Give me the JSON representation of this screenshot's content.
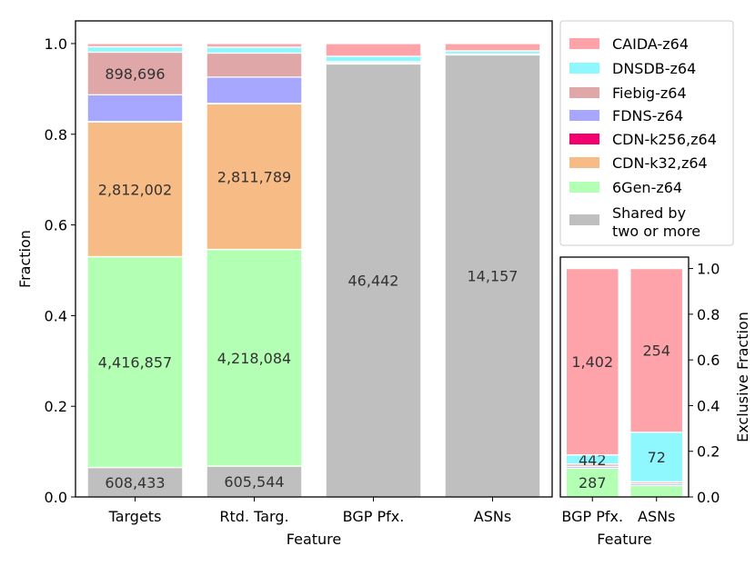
{
  "chart_data": [
    {
      "type": "stacked-bar",
      "id": "main",
      "title": "",
      "xlabel": "Feature",
      "ylabel": "Fraction",
      "ylim": [
        0,
        1.05
      ],
      "yticks": [
        0.0,
        0.2,
        0.4,
        0.6,
        0.8,
        1.0
      ],
      "ytick_labels": [
        "0.0",
        "0.2",
        "0.4",
        "0.6",
        "0.8",
        "1.0"
      ],
      "categories": [
        "Targets",
        "Rtd. Targ.",
        "BGP Pfx.",
        "ASNs"
      ],
      "series": [
        {
          "name": "Shared by two or more",
          "color": "#bfbfbf",
          "values": [
            0.065,
            0.068,
            0.955,
            0.975
          ],
          "labels": [
            "608,433",
            "605,544",
            "46,442",
            "14,157"
          ]
        },
        {
          "name": "6Gen-z64",
          "color": "#b3ffb3",
          "values": [
            0.465,
            0.478,
            0.0,
            0.0
          ],
          "labels": [
            "4,416,857",
            "4,218,084",
            "",
            ""
          ]
        },
        {
          "name": "CDN-k32,z64",
          "color": "#f7bb85",
          "values": [
            0.297,
            0.321,
            0.0,
            0.0
          ],
          "labels": [
            "2,812,002",
            "2,811,789",
            "",
            ""
          ]
        },
        {
          "name": "CDN-k256,z64",
          "color": "#f2006e",
          "values": [
            0.001,
            0.001,
            0.0,
            0.0
          ],
          "labels": [
            "",
            "",
            "",
            ""
          ]
        },
        {
          "name": "FDNS-z64",
          "color": "#a7a7ff",
          "values": [
            0.059,
            0.058,
            0.002,
            0.001
          ],
          "labels": [
            "",
            "",
            "",
            ""
          ]
        },
        {
          "name": "Fiebig-z64",
          "color": "#dfa7a7",
          "values": [
            0.094,
            0.053,
            0.003,
            0.001
          ],
          "labels": [
            "898,696",
            "",
            "",
            ""
          ]
        },
        {
          "name": "DNSDB-z64",
          "color": "#8ef8fe",
          "values": [
            0.012,
            0.013,
            0.012,
            0.007
          ],
          "labels": [
            "",
            "",
            "",
            ""
          ]
        },
        {
          "name": "CAIDA-z64",
          "color": "#fea3aa",
          "values": [
            0.007,
            0.008,
            0.028,
            0.016
          ],
          "labels": [
            "",
            "",
            "",
            ""
          ]
        }
      ]
    },
    {
      "type": "stacked-bar",
      "id": "inset",
      "title": "",
      "xlabel": "Feature",
      "ylabel": "Exclusive Fraction",
      "ylim": [
        0,
        1.05
      ],
      "yticks": [
        0.0,
        0.2,
        0.4,
        0.6,
        0.8,
        1.0
      ],
      "ytick_labels": [
        "0.0",
        "0.2",
        "0.4",
        "0.6",
        "0.8",
        "1.0"
      ],
      "categories": [
        "BGP Pfx.",
        "ASNs"
      ],
      "series": [
        {
          "name": "6Gen-z64",
          "color": "#b3ffb3",
          "values": [
            0.126,
            0.05
          ],
          "labels": [
            "287",
            ""
          ]
        },
        {
          "name": "FDNS-z64",
          "color": "#a7a7ff",
          "values": [
            0.008,
            0.008
          ],
          "labels": [
            "",
            ""
          ]
        },
        {
          "name": "Fiebig-z64",
          "color": "#dfa7a7",
          "values": [
            0.01,
            0.008
          ],
          "labels": [
            "",
            ""
          ]
        },
        {
          "name": "DNSDB-z64",
          "color": "#8ef8fe",
          "values": [
            0.04,
            0.217
          ],
          "labels": [
            "442",
            "72"
          ]
        },
        {
          "name": "CAIDA-z64",
          "color": "#fea3aa",
          "values": [
            0.816,
            0.717
          ],
          "labels": [
            "1,402",
            "254"
          ]
        }
      ]
    }
  ],
  "legend": {
    "placement": "top-right",
    "entries": [
      {
        "name": "CAIDA-z64",
        "color": "#fea3aa"
      },
      {
        "name": "DNSDB-z64",
        "color": "#8ef8fe"
      },
      {
        "name": "Fiebig-z64",
        "color": "#dfa7a7"
      },
      {
        "name": "FDNS-z64",
        "color": "#a7a7ff"
      },
      {
        "name": "CDN-k256,z64",
        "color": "#f2006e"
      },
      {
        "name": "CDN-k32,z64",
        "color": "#f7bb85"
      },
      {
        "name": "6Gen-z64",
        "color": "#b3ffb3"
      },
      {
        "name": "Shared by two or more",
        "color": "#bfbfbf"
      }
    ]
  }
}
